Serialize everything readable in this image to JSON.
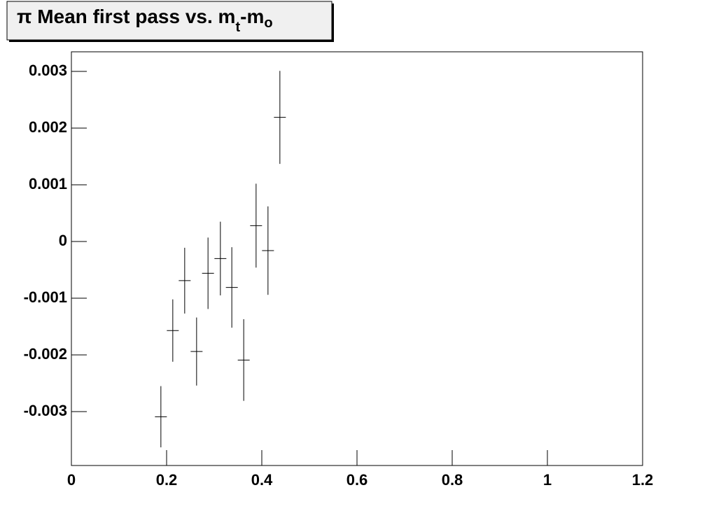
{
  "chart_data": {
    "type": "scatter",
    "title": [
      "π Mean first pass vs. m",
      "t",
      "-m",
      "o"
    ],
    "x": [
      0.188,
      0.213,
      0.238,
      0.263,
      0.287,
      0.313,
      0.337,
      0.362,
      0.388,
      0.413,
      0.438
    ],
    "values": [
      -0.00309,
      -0.00157,
      -0.00069,
      -0.00194,
      -0.00056,
      -0.0003,
      -0.00081,
      -0.00209,
      0.00028,
      -0.00016,
      0.00219
    ],
    "yerr": [
      0.00054,
      0.00055,
      0.00058,
      0.0006,
      0.00063,
      0.00065,
      0.00071,
      0.00072,
      0.00074,
      0.00078,
      0.00082
    ],
    "xerr": [
      0.0125,
      0.0125,
      0.0125,
      0.0125,
      0.0125,
      0.0125,
      0.0125,
      0.0125,
      0.0125,
      0.0125,
      0.0125
    ],
    "color": "#000000",
    "xlim": [
      0,
      1.2
    ],
    "ylim": [
      -0.00395,
      0.003346
    ],
    "xticks": [
      0,
      0.2,
      0.4,
      0.6,
      0.8,
      1,
      1.2
    ],
    "yticks": [
      -0.003,
      -0.002,
      -0.001,
      0,
      0.001,
      0.002,
      0.003
    ]
  }
}
